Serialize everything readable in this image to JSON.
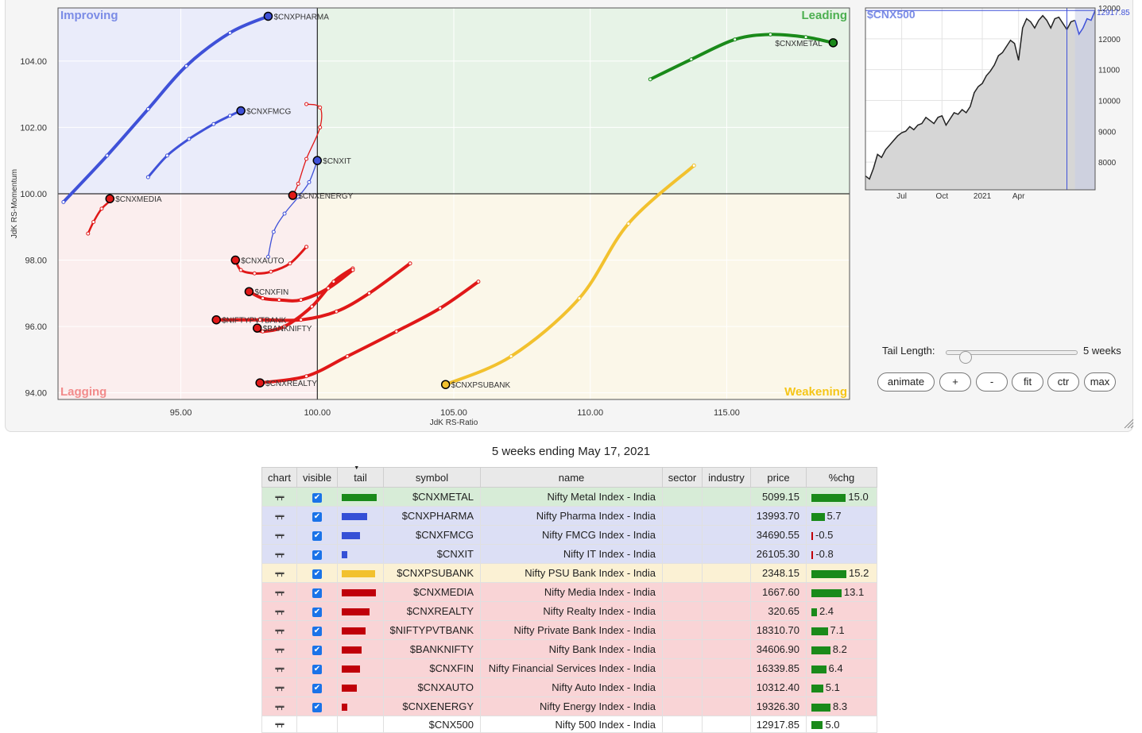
{
  "rrg": {
    "quadrants": {
      "improving": {
        "label": "Improving",
        "fill": "#eaecfa",
        "text": "#7b8ce6"
      },
      "leading": {
        "label": "Leading",
        "fill": "#e7f3e7",
        "text": "#4caf50"
      },
      "lagging": {
        "label": "Lagging",
        "fill": "#fbeeee",
        "text": "#f28b8b"
      },
      "weakening": {
        "label": "Weakening",
        "fill": "#fbf7e9",
        "text": "#f5c518"
      }
    },
    "x_axis_label": "JdK RS-Ratio",
    "y_axis_label": "JdK RS-Momentum",
    "x_ticks": [
      "95.00",
      "100.00",
      "105.00",
      "110.00",
      "115.00"
    ],
    "y_ticks": [
      "94.00",
      "96.00",
      "98.00",
      "100.00",
      "102.00",
      "104.00"
    ]
  },
  "chart_data": [
    {
      "type": "scatter",
      "title": "",
      "xlabel": "JdK RS-Ratio",
      "ylabel": "JdK RS-Momentum",
      "xlim": [
        90.5,
        119.5
      ],
      "ylim": [
        93.8,
        105.6
      ],
      "center": [
        100,
        100
      ],
      "grid": false,
      "series": [
        {
          "name": "$CNXMETAL",
          "color": "#1a8a1a",
          "width": 4,
          "x": [
            112.2,
            113.7,
            115.3,
            116.6,
            117.9,
            118.9
          ],
          "y": [
            103.45,
            104.05,
            104.65,
            104.8,
            104.72,
            104.55
          ]
        },
        {
          "name": "$CNXPHARMA",
          "color": "#3f51d8",
          "width": 4,
          "x": [
            90.7,
            92.3,
            93.8,
            95.2,
            96.8,
            98.2
          ],
          "y": [
            99.75,
            101.15,
            102.55,
            103.85,
            104.85,
            105.35
          ]
        },
        {
          "name": "$CNXFMCG",
          "color": "#3f51d8",
          "width": 3,
          "x": [
            93.8,
            94.5,
            95.3,
            96.2,
            96.8,
            97.2
          ],
          "y": [
            100.5,
            101.15,
            101.65,
            102.1,
            102.35,
            102.5
          ]
        },
        {
          "name": "$CNXIT",
          "color": "#3f51d8",
          "width": 1.3,
          "x": [
            98.2,
            98.4,
            98.8,
            99.3,
            99.7,
            100.0
          ],
          "y": [
            98.1,
            98.85,
            99.4,
            99.9,
            100.35,
            101.0
          ]
        },
        {
          "name": "$CNXPSUBANK",
          "color": "#f2c12e",
          "width": 4,
          "x": [
            113.8,
            111.4,
            109.6,
            107.1,
            104.7
          ],
          "y": [
            100.85,
            99.1,
            96.85,
            95.1,
            94.25
          ]
        },
        {
          "name": "$CNXMEDIA",
          "color": "#e01818",
          "width": 2.5,
          "x": [
            91.6,
            91.8,
            92.1,
            92.5,
            92.4
          ],
          "y": [
            98.8,
            99.15,
            99.55,
            99.85,
            99.85
          ]
        },
        {
          "name": "$CNXREALTY",
          "color": "#e01818",
          "width": 4,
          "x": [
            105.9,
            104.5,
            102.9,
            101.1,
            99.6,
            97.9
          ],
          "y": [
            97.35,
            96.55,
            95.85,
            95.1,
            94.5,
            94.3
          ]
        },
        {
          "name": "$NIFTYPVTBANK",
          "color": "#e01818",
          "width": 4,
          "x": [
            103.4,
            101.9,
            100.7,
            99.4,
            97.9,
            96.3
          ],
          "y": [
            97.9,
            97.0,
            96.45,
            96.2,
            96.2,
            96.2
          ]
        },
        {
          "name": "$BANKNIFTY",
          "color": "#e01818",
          "width": 4,
          "x": [
            101.3,
            100.6,
            99.8,
            98.8,
            98.0,
            97.8
          ],
          "y": [
            97.75,
            97.35,
            96.6,
            96.0,
            95.85,
            95.95
          ]
        },
        {
          "name": "$CNXFIN",
          "color": "#e01818",
          "width": 4,
          "x": [
            101.3,
            100.4,
            99.4,
            98.6,
            98.0,
            97.5
          ],
          "y": [
            97.7,
            97.15,
            96.8,
            96.8,
            96.85,
            97.05
          ]
        },
        {
          "name": "$CNXAUTO",
          "color": "#e01818",
          "width": 3,
          "x": [
            99.6,
            99.0,
            98.3,
            97.7,
            97.2,
            97.0
          ],
          "y": [
            98.4,
            97.9,
            97.65,
            97.6,
            97.7,
            98.0
          ]
        },
        {
          "name": "$CNXENERGY",
          "color": "#e01818",
          "width": 1.3,
          "x": [
            99.6,
            100.1,
            100.1,
            99.6,
            99.3,
            99.1
          ],
          "y": [
            102.7,
            102.6,
            102.0,
            101.05,
            100.3,
            99.95
          ]
        }
      ]
    },
    {
      "type": "area",
      "title": "$CNX500",
      "last_value": "12917.85",
      "x_ticks": [
        "Jul",
        "Oct",
        "2021",
        "Apr"
      ],
      "y_ticks": [
        "8000",
        "9000",
        "10000",
        "11000",
        "12000",
        "12000"
      ],
      "ylim": [
        7100,
        13000
      ],
      "values": [
        7550,
        7450,
        7800,
        8250,
        8150,
        8400,
        8550,
        8700,
        8850,
        8950,
        9000,
        9150,
        9050,
        9200,
        9250,
        9450,
        9350,
        9250,
        9450,
        9500,
        9200,
        9400,
        9600,
        9550,
        9700,
        9600,
        9800,
        10250,
        10450,
        10550,
        10800,
        10950,
        11150,
        11450,
        11550,
        11750,
        11950,
        11850,
        11300,
        12350,
        12650,
        12550,
        12350,
        12600,
        12750,
        12600,
        12350,
        12650,
        12700,
        12500,
        12300,
        12550,
        12600,
        12150,
        12350,
        12650,
        12600,
        12917.85
      ]
    }
  ],
  "controls": {
    "tail_length_label": "Tail Length:",
    "tail_length_value": "5 weeks",
    "tail_length_fraction": 0.11,
    "buttons": [
      "animate",
      "+",
      "-",
      "fit",
      "ctr",
      "max"
    ]
  },
  "caption": "5 weeks ending May 17, 2021",
  "table": {
    "headers": [
      "chart",
      "visible",
      "tail",
      "symbol",
      "name",
      "sector",
      "industry",
      "price",
      "%chg"
    ],
    "rows": [
      {
        "symbol": "$CNXMETAL",
        "name": "Nifty Metal Index - India",
        "price": "5099.15",
        "chg": "15.0",
        "chg_value": 15.0,
        "tail": 0.92,
        "tail_color": "#1a8a1a",
        "row_bg": "#d7ecd7",
        "visible": true
      },
      {
        "symbol": "$CNXPHARMA",
        "name": "Nifty Pharma Index - India",
        "price": "13993.70",
        "chg": "5.7",
        "chg_value": 5.7,
        "tail": 0.67,
        "tail_color": "#3550d6",
        "row_bg": "#dcdff5",
        "visible": true
      },
      {
        "symbol": "$CNXFMCG",
        "name": "Nifty FMCG Index - India",
        "price": "34690.55",
        "chg": "-0.5",
        "chg_value": -0.5,
        "tail": 0.47,
        "tail_color": "#3550d6",
        "row_bg": "#dcdff5",
        "visible": true
      },
      {
        "symbol": "$CNXIT",
        "name": "Nifty IT Index - India",
        "price": "26105.30",
        "chg": "-0.8",
        "chg_value": -0.8,
        "tail": 0.15,
        "tail_color": "#3550d6",
        "row_bg": "#dcdff5",
        "visible": true
      },
      {
        "symbol": "$CNXPSUBANK",
        "name": "Nifty PSU Bank Index - India",
        "price": "2348.15",
        "chg": "15.2",
        "chg_value": 15.2,
        "tail": 0.88,
        "tail_color": "#f2c12e",
        "row_bg": "#fbf1d4",
        "visible": true
      },
      {
        "symbol": "$CNXMEDIA",
        "name": "Nifty Media Index - India",
        "price": "1667.60",
        "chg": "13.1",
        "chg_value": 13.1,
        "tail": 0.9,
        "tail_color": "#c0000a",
        "row_bg": "#f9d4d6",
        "visible": true
      },
      {
        "symbol": "$CNXREALTY",
        "name": "Nifty Realty Index - India",
        "price": "320.65",
        "chg": "2.4",
        "chg_value": 2.4,
        "tail": 0.73,
        "tail_color": "#c0000a",
        "row_bg": "#f9d4d6",
        "visible": true
      },
      {
        "symbol": "$NIFTYPVTBANK",
        "name": "Nifty Private Bank Index - India",
        "price": "18310.70",
        "chg": "7.1",
        "chg_value": 7.1,
        "tail": 0.63,
        "tail_color": "#c0000a",
        "row_bg": "#f9d4d6",
        "visible": true
      },
      {
        "symbol": "$BANKNIFTY",
        "name": "Nifty Bank Index - India",
        "price": "34606.90",
        "chg": "8.2",
        "chg_value": 8.2,
        "tail": 0.53,
        "tail_color": "#c0000a",
        "row_bg": "#f9d4d6",
        "visible": true
      },
      {
        "symbol": "$CNXFIN",
        "name": "Nifty Financial Services Index - India",
        "price": "16339.85",
        "chg": "6.4",
        "chg_value": 6.4,
        "tail": 0.47,
        "tail_color": "#c0000a",
        "row_bg": "#f9d4d6",
        "visible": true
      },
      {
        "symbol": "$CNXAUTO",
        "name": "Nifty Auto Index - India",
        "price": "10312.40",
        "chg": "5.1",
        "chg_value": 5.1,
        "tail": 0.4,
        "tail_color": "#c0000a",
        "row_bg": "#f9d4d6",
        "visible": true
      },
      {
        "symbol": "$CNXENERGY",
        "name": "Nifty Energy Index - India",
        "price": "19326.30",
        "chg": "8.3",
        "chg_value": 8.3,
        "tail": 0.14,
        "tail_color": "#c0000a",
        "row_bg": "#f9d4d6",
        "visible": true
      },
      {
        "symbol": "$CNX500",
        "name": "Nifty 500 Index - India",
        "price": "12917.85",
        "chg": "5.0",
        "chg_value": 5.0,
        "tail": 0,
        "tail_color": "#ffffff",
        "row_bg": "#ffffff",
        "visible": false
      }
    ]
  },
  "colors": {
    "pos_bar": "#1a8a1a",
    "neg_bar": "#c0000a",
    "accent": "#1a73e8",
    "index_line": "#3f51d8"
  }
}
